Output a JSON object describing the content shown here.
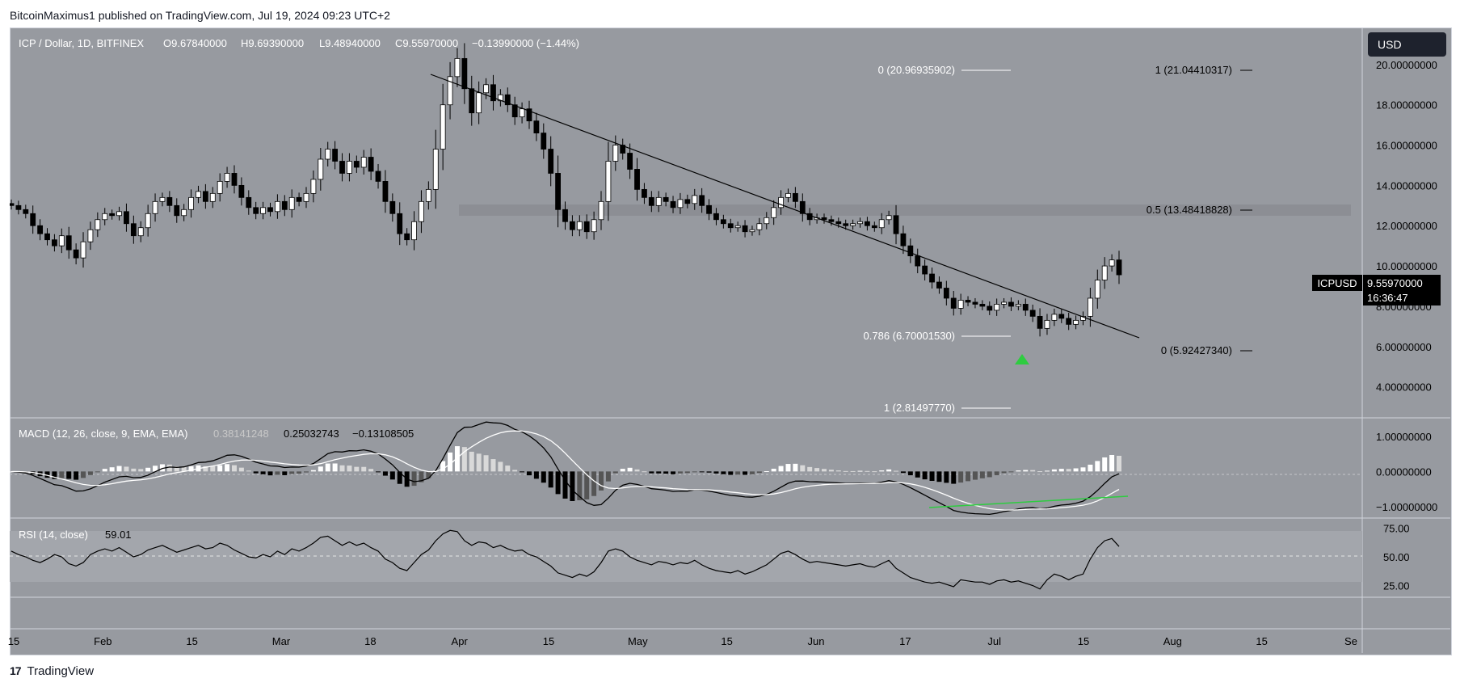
{
  "header": {
    "published": "BitcoinMaximus1 published on TradingView.com, Jul 19, 2024 09:23 UTC+2"
  },
  "footer": {
    "brand": "TradingView",
    "logo_glyph": "17"
  },
  "toolbar": {
    "currency": "USD"
  },
  "legend": {
    "symbol": "ICP / Dollar, 1D, BITFINEX",
    "o_label": "O",
    "o_value": "9.67840000",
    "h_label": "H",
    "h_value": "9.69390000",
    "l_label": "L",
    "l_value": "9.48940000",
    "c_label": "C",
    "c_value": "9.55970000",
    "change": "−0.13990000 (−1.44%)"
  },
  "price_tag": {
    "ticker": "ICPUSD",
    "price": "9.55970000",
    "countdown": "16:36:47"
  },
  "fib_labels": {
    "top_zero": "0 (20.96935902)",
    "top_one": "1 (21.04410317)",
    "half": "0.5 (13.48418828)",
    "f786": "0.786 (6.70001530)",
    "bottom_zero": "0 (5.92427340)",
    "bottom_one": "1 (2.81497770)"
  },
  "macd": {
    "label": "MACD (12, 26, close, 9, EMA, EMA)",
    "v1": "0.38141248",
    "v2": "0.25032743",
    "v3": "−0.13108505"
  },
  "rsi": {
    "label": "RSI (14, close)",
    "value": "59.01"
  },
  "colors": {
    "background": "#979aa0",
    "up": "#ffffff",
    "down": "#000000",
    "signal": "#2ecc40",
    "zone": "#8a8d93"
  },
  "chart_data": [
    {
      "type": "candlestick",
      "title": "ICP / Dollar, 1D, BITFINEX",
      "x_ticks": [
        "15",
        "Feb",
        "15",
        "Mar",
        "18",
        "Apr",
        "15",
        "May",
        "15",
        "Jun",
        "17",
        "Jul",
        "15",
        "Aug",
        "15",
        "Se"
      ],
      "y_ticks": [
        "4.00000000",
        "6.00000000",
        "8.00000000",
        "10.00000000",
        "12.00000000",
        "14.00000000",
        "16.00000000",
        "18.00000000",
        "20.00000000"
      ],
      "ylim": [
        2.5,
        21.8
      ],
      "close_approx": [
        13.0,
        12.8,
        12.6,
        12.0,
        11.6,
        11.3,
        11.0,
        11.5,
        10.8,
        10.4,
        11.2,
        11.8,
        12.3,
        12.6,
        12.5,
        12.7,
        12.1,
        11.5,
        11.9,
        12.6,
        13.2,
        13.4,
        13.0,
        12.5,
        12.8,
        13.4,
        13.7,
        13.2,
        13.6,
        14.2,
        14.6,
        14.0,
        13.4,
        12.9,
        12.6,
        12.9,
        12.7,
        13.2,
        12.8,
        13.4,
        13.2,
        13.6,
        14.3,
        15.3,
        15.8,
        15.2,
        14.6,
        15.2,
        14.9,
        15.4,
        14.7,
        14.2,
        13.2,
        12.6,
        11.6,
        11.3,
        12.2,
        13.2,
        13.8,
        15.8,
        18.0,
        19.4,
        20.3,
        18.8,
        17.6,
        18.6,
        19.0,
        18.2,
        18.5,
        18.0,
        17.4,
        17.8,
        17.2,
        16.6,
        15.8,
        14.6,
        12.8,
        12.2,
        11.8,
        12.2,
        11.7,
        12.3,
        13.2,
        15.2,
        16.0,
        15.6,
        14.8,
        13.8,
        13.4,
        13.0,
        13.4,
        13.2,
        12.9,
        13.3,
        13.1,
        13.5,
        13.0,
        12.6,
        12.3,
        12.1,
        11.9,
        12.0,
        11.7,
        11.8,
        12.1,
        12.4,
        12.9,
        13.4,
        13.6,
        13.2,
        12.6,
        12.3,
        12.4,
        12.3,
        12.2,
        12.1,
        12.0,
        12.1,
        12.2,
        12.0,
        11.9,
        12.3,
        12.5,
        11.6,
        11.0,
        10.5,
        10.0,
        9.6,
        9.2,
        8.9,
        8.4,
        7.9,
        8.3,
        8.2,
        8.1,
        8.0,
        7.8,
        8.1,
        8.2,
        8.0,
        8.1,
        7.8,
        7.5,
        6.9,
        7.3,
        7.6,
        7.4,
        7.1,
        7.3,
        7.5,
        8.4,
        9.3,
        10.0,
        10.3,
        9.56
      ]
    },
    {
      "type": "line",
      "title": "MACD (12, 26, close, 9, EMA, EMA)",
      "y_ticks": [
        "1.00000000",
        "0.00000000",
        "−1.00000000"
      ],
      "ylim": [
        -1.3,
        1.5
      ],
      "series": [
        {
          "name": "MACD"
        },
        {
          "name": "Signal"
        },
        {
          "name": "Histogram"
        }
      ]
    },
    {
      "type": "line",
      "title": "RSI (14, close)",
      "y_ticks": [
        "75.00",
        "50.00",
        "25.00"
      ],
      "ylim": [
        0,
        100
      ],
      "series": [
        {
          "name": "RSI",
          "values": [
            55,
            52,
            50,
            47,
            45,
            48,
            52,
            50,
            44,
            42,
            45,
            52,
            55,
            57,
            55,
            58,
            54,
            50,
            52,
            56,
            58,
            60,
            57,
            54,
            56,
            58,
            60,
            57,
            58,
            62,
            60,
            56,
            53,
            50,
            49,
            52,
            50,
            55,
            52,
            57,
            55,
            58,
            62,
            67,
            68,
            64,
            60,
            63,
            60,
            62,
            58,
            55,
            48,
            45,
            40,
            38,
            45,
            52,
            56,
            64,
            70,
            73,
            72,
            64,
            60,
            63,
            62,
            58,
            60,
            57,
            55,
            56,
            52,
            50,
            46,
            42,
            36,
            34,
            32,
            35,
            33,
            37,
            45,
            55,
            57,
            55,
            50,
            47,
            45,
            43,
            46,
            45,
            43,
            45,
            44,
            47,
            43,
            40,
            38,
            37,
            36,
            38,
            35,
            37,
            40,
            43,
            48,
            53,
            55,
            52,
            48,
            45,
            46,
            45,
            44,
            43,
            42,
            43,
            44,
            42,
            41,
            44,
            47,
            40,
            36,
            32,
            30,
            28,
            27,
            28,
            26,
            24,
            30,
            29,
            28,
            28,
            26,
            29,
            30,
            28,
            29,
            27,
            25,
            22,
            30,
            35,
            33,
            30,
            33,
            35,
            48,
            58,
            64,
            66,
            59
          ]
        }
      ]
    }
  ]
}
